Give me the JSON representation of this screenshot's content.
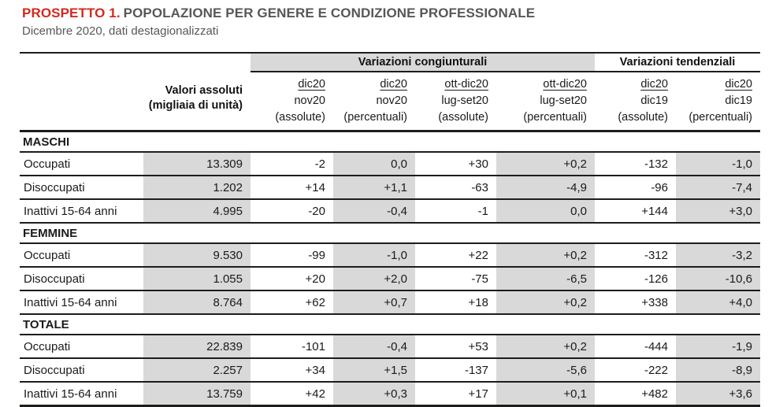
{
  "title": {
    "label": "PROSPETTO 1.",
    "text": "POPOLAZIONE PER GENERE E CONDIZIONE PROFESSIONALE"
  },
  "subtitle": "Dicembre 2020, dati destagionalizzati",
  "colors": {
    "accent_red": "#d5281e",
    "title_gray": "#575756",
    "cell_shade": "#d9d9d9",
    "rule_black": "#1d1d1b"
  },
  "table": {
    "corner_header": {
      "line1": "Valori assoluti",
      "line2": "(migliaia di unità)"
    },
    "groups": [
      {
        "label": "Variazioni congiunturali",
        "span": 4
      },
      {
        "label": "Variazioni tendenziali",
        "span": 2
      }
    ],
    "columns": [
      {
        "top": "dic20",
        "mid": "nov20",
        "bottom": "(assolute)"
      },
      {
        "top": "dic20",
        "mid": "nov20",
        "bottom": "(percentuali)"
      },
      {
        "top": "ott-dic20",
        "mid": "lug-set20",
        "bottom": "(assolute)"
      },
      {
        "top": "ott-dic20",
        "mid": "lug-set20",
        "bottom": "(percentuali)"
      },
      {
        "top": "dic20",
        "mid": "dic19",
        "bottom": "(assolute)"
      },
      {
        "top": "dic20",
        "mid": "dic19",
        "bottom": "(percentuali)"
      }
    ],
    "sections": [
      {
        "label": "MASCHI",
        "rows": [
          {
            "label": "Occupati",
            "values": [
              "13.309",
              "-2",
              "0,0",
              "+30",
              "+0,2",
              "-132",
              "-1,0"
            ]
          },
          {
            "label": "Disoccupati",
            "values": [
              "1.202",
              "+14",
              "+1,1",
              "-63",
              "-4,9",
              "-96",
              "-7,4"
            ]
          },
          {
            "label": "Inattivi 15-64 anni",
            "values": [
              "4.995",
              "-20",
              "-0,4",
              "-1",
              "0,0",
              "+144",
              "+3,0"
            ]
          }
        ]
      },
      {
        "label": "FEMMINE",
        "rows": [
          {
            "label": "Occupati",
            "values": [
              "9.530",
              "-99",
              "-1,0",
              "+22",
              "+0,2",
              "-312",
              "-3,2"
            ]
          },
          {
            "label": "Disoccupati",
            "values": [
              "1.055",
              "+20",
              "+2,0",
              "-75",
              "-6,5",
              "-126",
              "-10,6"
            ]
          },
          {
            "label": "Inattivi 15-64 anni",
            "values": [
              "8.764",
              "+62",
              "+0,7",
              "+18",
              "+0,2",
              "+338",
              "+4,0"
            ]
          }
        ]
      },
      {
        "label": "TOTALE",
        "rows": [
          {
            "label": "Occupati",
            "values": [
              "22.839",
              "-101",
              "-0,4",
              "+53",
              "+0,2",
              "-444",
              "-1,9"
            ]
          },
          {
            "label": "Disoccupati",
            "values": [
              "2.257",
              "+34",
              "+1,5",
              "-137",
              "-5,6",
              "-222",
              "-8,9"
            ]
          },
          {
            "label": "Inattivi 15-64 anni",
            "values": [
              "13.759",
              "+42",
              "+0,3",
              "+17",
              "+0,1",
              "+482",
              "+3,6"
            ]
          }
        ]
      }
    ]
  }
}
